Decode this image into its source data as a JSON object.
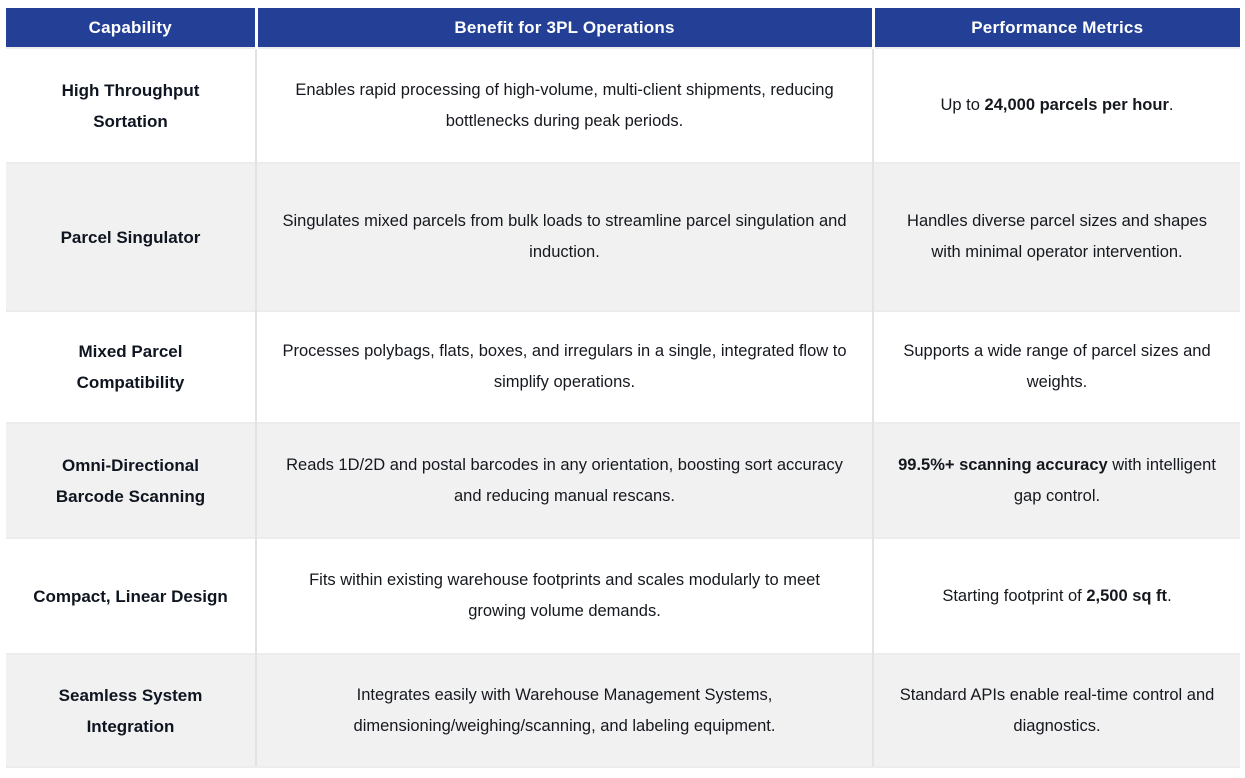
{
  "theme": {
    "header_bg": "#234096",
    "header_text": "#ffffff",
    "row_bg": "#ffffff",
    "row_alt_bg": "#f1f1f1",
    "border_color": "#e3e3e3",
    "text_color": "#15181e"
  },
  "table": {
    "headers": [
      {
        "label": "Capability"
      },
      {
        "label": "Benefit for 3PL Operations"
      },
      {
        "label": "Performance Metrics"
      }
    ],
    "rows": [
      {
        "capability": "High Throughput Sortation",
        "benefit": "Enables rapid processing of high-volume, multi-client shipments, reducing bottlenecks during peak periods.",
        "metric_parts": [
          {
            "text": "Up to ",
            "bold": false
          },
          {
            "text": "24,000 parcels per hour",
            "bold": true
          },
          {
            "text": ".",
            "bold": false
          }
        ]
      },
      {
        "capability": "Parcel Singulator",
        "benefit": "Singulates mixed parcels from bulk loads to streamline parcel singulation and induction.",
        "metric_parts": [
          {
            "text": "Handles diverse parcel sizes and shapes with minimal operator intervention.",
            "bold": false
          }
        ]
      },
      {
        "capability": "Mixed Parcel Compatibility",
        "benefit": "Processes polybags, flats, boxes, and irregulars in a single, integrated flow to simplify operations.",
        "metric_parts": [
          {
            "text": "Supports a wide range of parcel sizes and weights.",
            "bold": false
          }
        ]
      },
      {
        "capability": "Omni-Directional Barcode Scanning",
        "benefit": "Reads 1D/2D and postal barcodes in any orientation, boosting sort accuracy and reducing manual rescans.",
        "metric_parts": [
          {
            "text": "99.5%+ scanning accuracy",
            "bold": true
          },
          {
            "text": " with intelligent gap control.",
            "bold": false
          }
        ]
      },
      {
        "capability": "Compact, Linear Design",
        "benefit": "Fits within existing warehouse footprints and scales modularly to meet growing volume demands.",
        "metric_parts": [
          {
            "text": "Starting footprint of ",
            "bold": false
          },
          {
            "text": "2,500 sq ft",
            "bold": true
          },
          {
            "text": ".",
            "bold": false
          }
        ]
      },
      {
        "capability": "Seamless System Integration",
        "benefit": "Integrates easily with Warehouse Management Systems, dimensioning/weighing/scanning, and labeling equipment.",
        "metric_parts": [
          {
            "text": "Standard APIs enable real-time control and diagnostics.",
            "bold": false
          }
        ]
      }
    ]
  }
}
